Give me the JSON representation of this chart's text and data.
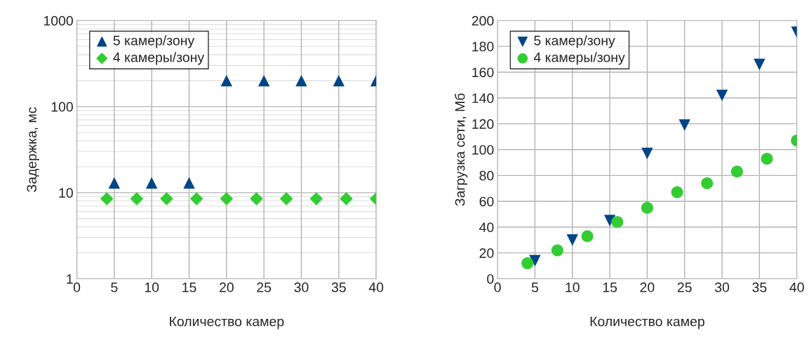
{
  "chart_data": [
    {
      "type": "scatter",
      "xlabel": "Количество камер",
      "ylabel": "Задержка, мс",
      "log": "y",
      "xlim": [
        0,
        40
      ],
      "xticks": [
        0,
        5,
        10,
        15,
        20,
        25,
        30,
        35,
        40
      ],
      "ylim": [
        1,
        1000
      ],
      "yticks": [
        1,
        10,
        100,
        1000
      ],
      "grid": true,
      "legend": "top left",
      "series": [
        {
          "name": "5 камер/зону",
          "color": "#004586",
          "marker": "triangle",
          "x": [
            5,
            10,
            15,
            20,
            25,
            30,
            35,
            40
          ],
          "values": [
            13,
            13,
            13,
            200,
            200,
            200,
            200,
            200
          ]
        },
        {
          "name": "4 камеры/зону",
          "color": "#33cc33",
          "marker": "diamond",
          "x": [
            4,
            8,
            12,
            16,
            20,
            24,
            28,
            32,
            36,
            40
          ],
          "values": [
            8.5,
            8.5,
            8.5,
            8.5,
            8.5,
            8.5,
            8.5,
            8.5,
            8.5,
            8.5
          ]
        }
      ]
    },
    {
      "type": "scatter",
      "xlabel": "Количество камер",
      "ylabel": "Загрузка сети, Мб",
      "xlim": [
        0,
        40
      ],
      "xticks": [
        0,
        5,
        10,
        15,
        20,
        25,
        30,
        35,
        40
      ],
      "ylim": [
        0,
        200
      ],
      "yticks": [
        0,
        20,
        40,
        60,
        80,
        100,
        120,
        140,
        160,
        180,
        200
      ],
      "grid": true,
      "legend": "top left",
      "series": [
        {
          "name": "5 камер/зону",
          "color": "#004586",
          "marker": "triangle_down",
          "x": [
            5,
            10,
            15,
            20,
            25,
            30,
            35,
            40
          ],
          "values": [
            14,
            30,
            45,
            97,
            119,
            142,
            166,
            191
          ]
        },
        {
          "name": "4 камеры/зону",
          "color": "#33cc33",
          "marker": "circle",
          "x": [
            4,
            8,
            12,
            16,
            20,
            24,
            28,
            32,
            36,
            40
          ],
          "values": [
            12,
            22,
            33,
            44,
            55,
            67,
            74,
            83,
            93,
            107
          ]
        }
      ]
    }
  ]
}
